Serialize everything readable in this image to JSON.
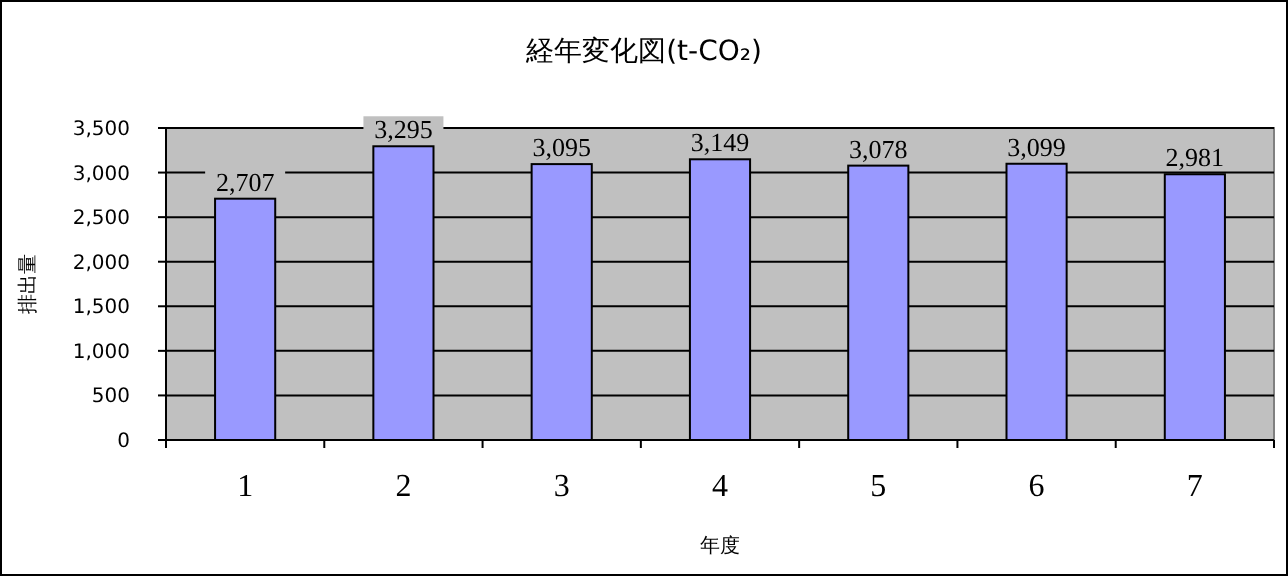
{
  "chart_data": {
    "type": "bar",
    "title": "経年変化図(t-CO₂)",
    "xlabel": "年度",
    "ylabel": "排出量",
    "categories": [
      "1",
      "2",
      "3",
      "4",
      "5",
      "6",
      "7"
    ],
    "series": [
      {
        "color": "#9999ff",
        "values": [
          2707,
          3295,
          3095,
          3149,
          3078,
          3099,
          2981
        ],
        "value_labels": [
          "2,707",
          "3,295",
          "3,095",
          "3,149",
          "3,078",
          "3,099",
          "2,981"
        ]
      }
    ],
    "ylim": [
      0,
      3500
    ],
    "yticks": [
      {
        "value": 0,
        "label": "0"
      },
      {
        "value": 500,
        "label": "500"
      },
      {
        "value": 1000,
        "label": "1,000"
      },
      {
        "value": 1500,
        "label": "1,500"
      },
      {
        "value": 2000,
        "label": "2,000"
      },
      {
        "value": 2500,
        "label": "2,500"
      },
      {
        "value": 3000,
        "label": "3,000"
      },
      {
        "value": 3500,
        "label": "3,500"
      }
    ],
    "grid": "y"
  }
}
